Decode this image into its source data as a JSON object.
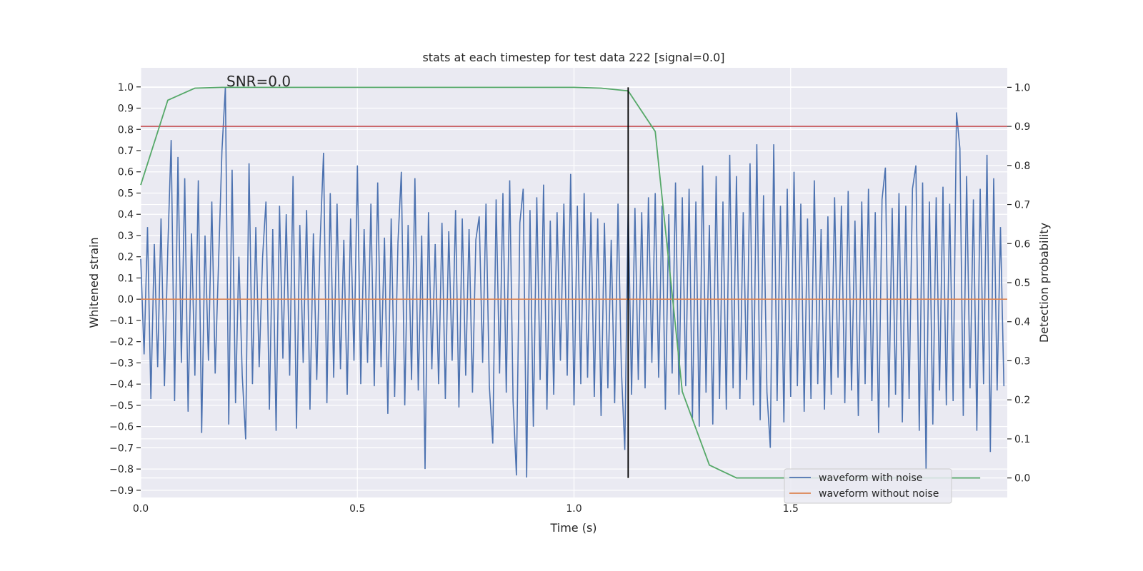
{
  "chart_data": {
    "type": "line",
    "title": "stats at each timestep for test data 222 [signal=0.0]",
    "annotation": "SNR=0.0",
    "xlabel": "Time (s)",
    "ylabel_left": "Whitened strain",
    "ylabel_right": "Detection probability",
    "xlim": [
      0.0,
      2.0
    ],
    "ylim_left": [
      -0.934,
      1.09
    ],
    "ylim_right": [
      -0.05,
      1.05
    ],
    "x_ticks": [
      "0.0",
      "0.5",
      "1.0",
      "1.5"
    ],
    "y_ticks_left": [
      "1.0",
      "0.9",
      "0.8",
      "0.7",
      "0.6",
      "0.5",
      "0.4",
      "0.3",
      "0.2",
      "0.1",
      "0.0",
      "−0.1",
      "−0.2",
      "−0.3",
      "−0.4",
      "−0.5",
      "−0.6",
      "−0.7",
      "−0.8",
      "−0.9"
    ],
    "y_ticks_right": [
      "1.0",
      "0.9",
      "0.8",
      "0.7",
      "0.6",
      "0.5",
      "0.4",
      "0.3",
      "0.2",
      "0.1",
      "0.0"
    ],
    "grid": true,
    "legend_position": "bottom-right",
    "legend": [
      "waveform with noise",
      "waveform without noise"
    ],
    "colors": {
      "noisy": "#4c72b0",
      "clean": "#dd8452",
      "probability": "#55a868",
      "threshold": "#c44e52",
      "marker": "#000000",
      "background": "#eaeaf2"
    },
    "series": [
      {
        "name": "waveform with noise",
        "axis": "left",
        "x_start": 0.0,
        "x_step": 0.0078125,
        "values": [
          0.19,
          -0.26,
          0.34,
          -0.47,
          0.26,
          -0.32,
          0.38,
          -0.41,
          0.24,
          0.75,
          -0.48,
          0.67,
          -0.3,
          0.57,
          -0.53,
          0.31,
          -0.36,
          0.56,
          -0.63,
          0.3,
          -0.29,
          0.46,
          -0.35,
          0.18,
          0.7,
          1.0,
          -0.59,
          0.61,
          -0.49,
          0.2,
          -0.36,
          -0.66,
          0.64,
          -0.4,
          0.34,
          -0.32,
          0.2,
          0.46,
          -0.52,
          0.33,
          -0.62,
          0.44,
          -0.28,
          0.4,
          -0.36,
          0.58,
          -0.61,
          0.35,
          -0.3,
          0.42,
          -0.52,
          0.31,
          -0.38,
          0.27,
          0.69,
          -0.49,
          0.5,
          -0.37,
          0.45,
          -0.33,
          0.28,
          -0.45,
          0.38,
          -0.29,
          0.63,
          -0.4,
          0.33,
          -0.3,
          0.45,
          -0.41,
          0.55,
          -0.32,
          0.29,
          -0.54,
          0.38,
          -0.46,
          0.27,
          0.6,
          -0.5,
          0.35,
          -0.38,
          0.57,
          -0.43,
          0.3,
          -0.8,
          0.41,
          -0.33,
          0.26,
          -0.4,
          0.36,
          -0.47,
          0.32,
          -0.29,
          0.42,
          -0.51,
          0.38,
          -0.36,
          0.33,
          -0.44,
          0.28,
          0.39,
          -0.3,
          0.45,
          -0.41,
          -0.68,
          0.47,
          -0.35,
          0.5,
          -0.44,
          0.56,
          -0.48,
          -0.83,
          0.36,
          0.52,
          -0.84,
          0.42,
          -0.6,
          0.48,
          -0.38,
          0.54,
          -0.52,
          0.37,
          -0.45,
          0.41,
          -0.29,
          0.45,
          -0.36,
          0.59,
          -0.5,
          0.44,
          -0.4,
          0.5,
          -0.37,
          0.41,
          -0.46,
          0.38,
          -0.55,
          0.36,
          -0.42,
          0.28,
          -0.49,
          0.45,
          -0.33,
          -0.71,
          0.45,
          -0.45,
          0.43,
          -0.38,
          0.41,
          -0.42,
          0.48,
          -0.3,
          0.5,
          -0.37,
          0.44,
          -0.52,
          0.4,
          -0.35,
          0.55,
          -0.45,
          0.48,
          -0.41,
          0.52,
          -0.56,
          0.46,
          -0.6,
          0.63,
          -0.44,
          0.35,
          -0.59,
          0.58,
          -0.47,
          0.46,
          -0.52,
          0.68,
          -0.42,
          0.58,
          -0.47,
          0.41,
          -0.38,
          0.64,
          -0.5,
          0.73,
          -0.57,
          0.49,
          -0.44,
          -0.7,
          0.73,
          -0.48,
          0.44,
          -0.58,
          0.52,
          -0.46,
          0.6,
          -0.41,
          0.45,
          -0.53,
          0.38,
          -0.47,
          0.56,
          -0.4,
          0.33,
          -0.52,
          0.39,
          -0.45,
          0.48,
          -0.37,
          0.44,
          -0.49,
          0.51,
          -0.43,
          0.37,
          -0.55,
          0.46,
          -0.4,
          0.52,
          -0.48,
          0.41,
          -0.63,
          0.47,
          0.62,
          -0.51,
          0.43,
          -0.45,
          0.5,
          -0.58,
          0.44,
          -0.47,
          0.52,
          0.63,
          -0.62,
          0.55,
          -0.8,
          0.46,
          -0.59,
          0.48,
          -0.43,
          0.53,
          -0.5,
          0.45,
          -0.48,
          0.88,
          0.71,
          -0.55,
          0.58,
          -0.42,
          0.47,
          -0.62,
          0.52,
          -0.4,
          0.68,
          -0.72,
          0.57,
          -0.43,
          0.34,
          -0.41
        ]
      },
      {
        "name": "waveform without noise",
        "axis": "left",
        "x": [
          0.0,
          2.0
        ],
        "values": [
          0.0,
          0.0
        ]
      },
      {
        "axis": "right",
        "x_start": 0.0,
        "x_step": 0.0625,
        "values": [
          0.75,
          0.967,
          0.998,
          1.0,
          1.0,
          1.0,
          1.0,
          1.0,
          1.0,
          1.0,
          1.0,
          1.0,
          1.0,
          1.0,
          1.0,
          1.0,
          1.0,
          0.998,
          0.991,
          0.887,
          0.221,
          0.033,
          0.0,
          0.0,
          0.0,
          0.0,
          0.0,
          0.0,
          0.0,
          0.0,
          0.0,
          0.0
        ]
      }
    ],
    "threshold": {
      "axis": "right",
      "y": 0.9
    },
    "marker_line": {
      "axis": "right",
      "x": 1.125,
      "y_range": [
        0.0,
        1.0
      ]
    }
  }
}
